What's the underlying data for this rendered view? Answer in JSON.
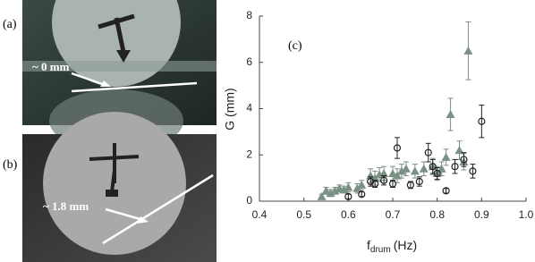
{
  "panel_a": {
    "label": "(a)",
    "annotation": "~ 0 mm"
  },
  "panel_b": {
    "label": "(b)",
    "annotation": "~ 1.8 mm"
  },
  "chart_data": {
    "type": "scatter",
    "panel_label": "(c)",
    "y_label": "G (mm)",
    "x_label": "f",
    "x_label_sub": "drum",
    "x_label_unit": "(Hz)",
    "xlim": [
      0.4,
      1.0
    ],
    "xticks": [
      0.4,
      0.5,
      0.6,
      0.7,
      0.8,
      0.9,
      {
        "value": 1,
        "label": "1.0"
      }
    ],
    "ylim": [
      0,
      8
    ],
    "yticks": [
      0,
      2,
      4,
      6,
      8
    ],
    "series": [
      {
        "marker": "triangle",
        "color": "#7a9186",
        "x": [
          0.54,
          0.55,
          0.56,
          0.57,
          0.58,
          0.59,
          0.6,
          0.62,
          0.63,
          0.65,
          0.66,
          0.67,
          0.68,
          0.7,
          0.71,
          0.72,
          0.73,
          0.75,
          0.77,
          0.79,
          0.8,
          0.81,
          0.82,
          0.83,
          0.85,
          0.86,
          0.87
        ],
        "values": [
          0.2,
          0.45,
          0.35,
          0.45,
          0.55,
          0.5,
          0.6,
          0.55,
          0.7,
          1.1,
          1.0,
          1.15,
          1.2,
          1.2,
          1.1,
          1.3,
          1.4,
          1.3,
          1.4,
          1.5,
          1.2,
          1.4,
          1.9,
          3.75,
          2.2,
          1.7,
          6.5
        ],
        "errors": [
          0.1,
          0.15,
          0.15,
          0.15,
          0.15,
          0.15,
          0.2,
          0.2,
          0.2,
          0.3,
          0.3,
          0.3,
          0.3,
          0.3,
          0.3,
          0.3,
          0.3,
          0.3,
          0.3,
          0.35,
          0.3,
          0.3,
          0.35,
          0.7,
          0.4,
          0.35,
          1.25
        ]
      },
      {
        "marker": "circle",
        "color": "#222222",
        "x": [
          0.6,
          0.63,
          0.65,
          0.66,
          0.68,
          0.7,
          0.71,
          0.74,
          0.76,
          0.78,
          0.79,
          0.8,
          0.82,
          0.84,
          0.86,
          0.88,
          0.9
        ],
        "values": [
          0.2,
          0.3,
          0.85,
          0.75,
          0.9,
          0.75,
          2.3,
          0.7,
          0.85,
          2.1,
          1.5,
          1.2,
          0.45,
          1.5,
          1.8,
          1.3,
          3.45
        ],
        "errors": [
          0.1,
          0.1,
          0.2,
          0.15,
          0.2,
          0.15,
          0.45,
          0.15,
          0.2,
          0.4,
          0.3,
          0.25,
          0.1,
          0.3,
          0.3,
          0.3,
          0.7
        ]
      }
    ]
  }
}
